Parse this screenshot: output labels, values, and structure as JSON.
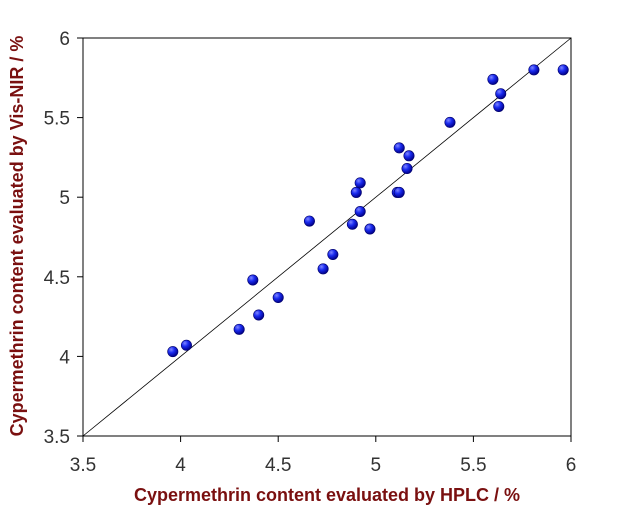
{
  "chart_data": {
    "type": "scatter",
    "title": "",
    "xlabel": "Cypermethrin  content evaluated by HPLC / %",
    "ylabel": "Cypermethrin  content evaluated by Vis-NIR / %",
    "xlim": [
      3.5,
      6
    ],
    "ylim": [
      3.5,
      6
    ],
    "x_ticks": [
      "3.5",
      "4",
      "4.5",
      "5",
      "5.5",
      "6"
    ],
    "y_ticks": [
      "3.5",
      "4",
      "4.5",
      "5",
      "5.5",
      "6"
    ],
    "grid": false,
    "reference_line": {
      "from": [
        3.5,
        3.5
      ],
      "to": [
        6,
        6
      ]
    },
    "series": [
      {
        "marker_color": "#0000ee",
        "points": [
          [
            3.96,
            4.03
          ],
          [
            4.03,
            4.07
          ],
          [
            4.3,
            4.17
          ],
          [
            4.37,
            4.48
          ],
          [
            4.4,
            4.26
          ],
          [
            4.5,
            4.37
          ],
          [
            4.66,
            4.85
          ],
          [
            4.73,
            4.55
          ],
          [
            4.78,
            4.64
          ],
          [
            4.88,
            4.83
          ],
          [
            4.9,
            5.03
          ],
          [
            4.92,
            5.09
          ],
          [
            4.92,
            4.91
          ],
          [
            4.97,
            4.8
          ],
          [
            5.11,
            5.03
          ],
          [
            5.12,
            5.31
          ],
          [
            5.12,
            5.03
          ],
          [
            5.16,
            5.18
          ],
          [
            5.17,
            5.26
          ],
          [
            5.38,
            5.47
          ],
          [
            5.6,
            5.74
          ],
          [
            5.63,
            5.57
          ],
          [
            5.64,
            5.65
          ],
          [
            5.81,
            5.8
          ],
          [
            5.96,
            5.8
          ]
        ]
      }
    ]
  }
}
